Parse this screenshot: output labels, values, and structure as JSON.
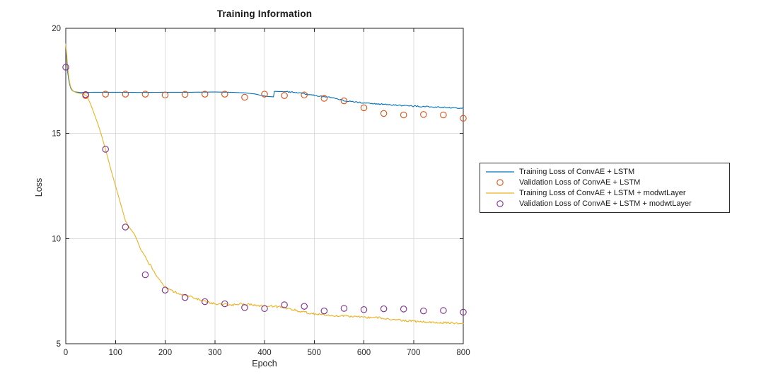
{
  "chart_data": {
    "type": "line",
    "title": "Training Information",
    "xlabel": "Epoch",
    "ylabel": "Loss",
    "xlim": [
      0,
      800
    ],
    "ylim": [
      5,
      20
    ],
    "x_ticks": [
      0,
      100,
      200,
      300,
      400,
      500,
      600,
      700,
      800
    ],
    "y_ticks": [
      5,
      10,
      15,
      20
    ],
    "grid": true,
    "box": true,
    "legend_position": "outside-right",
    "colors": {
      "axis": "#262626",
      "grid": "#dedede",
      "background": "#ffffff",
      "blue": "#0072BD",
      "orange": "#D95319",
      "yellow": "#EDB120",
      "purple": "#7E2F8E"
    },
    "series": [
      {
        "name": "Training Loss of ConvAE + LSTM",
        "type": "line",
        "color": "#0072BD",
        "noise": {
          "start": 430,
          "amplitude": 0.028
        },
        "points": [
          [
            0,
            19.3
          ],
          [
            2,
            18.5
          ],
          [
            4,
            17.9
          ],
          [
            6,
            17.55
          ],
          [
            8,
            17.32
          ],
          [
            10,
            17.15
          ],
          [
            13,
            17.05
          ],
          [
            16,
            17.0
          ],
          [
            20,
            16.97
          ],
          [
            30,
            16.95
          ],
          [
            60,
            16.96
          ],
          [
            100,
            16.96
          ],
          [
            150,
            16.95
          ],
          [
            200,
            16.96
          ],
          [
            250,
            16.96
          ],
          [
            300,
            16.97
          ],
          [
            330,
            16.96
          ],
          [
            360,
            16.93
          ],
          [
            380,
            16.88
          ],
          [
            395,
            16.8
          ],
          [
            405,
            16.76
          ],
          [
            418,
            16.74
          ],
          [
            420,
            17.0
          ],
          [
            450,
            16.98
          ],
          [
            470,
            16.93
          ],
          [
            490,
            16.85
          ],
          [
            510,
            16.78
          ],
          [
            530,
            16.72
          ],
          [
            545,
            16.65
          ],
          [
            560,
            16.56
          ],
          [
            580,
            16.5
          ],
          [
            600,
            16.45
          ],
          [
            630,
            16.4
          ],
          [
            660,
            16.35
          ],
          [
            690,
            16.31
          ],
          [
            720,
            16.28
          ],
          [
            750,
            16.25
          ],
          [
            780,
            16.22
          ],
          [
            800,
            16.18
          ]
        ]
      },
      {
        "name": "Validation Loss of ConvAE + LSTM",
        "type": "scatter",
        "color": "#D95319",
        "points": [
          [
            40,
            16.8
          ],
          [
            80,
            16.87
          ],
          [
            120,
            16.87
          ],
          [
            160,
            16.87
          ],
          [
            200,
            16.83
          ],
          [
            240,
            16.86
          ],
          [
            280,
            16.87
          ],
          [
            320,
            16.87
          ],
          [
            360,
            16.72
          ],
          [
            400,
            16.87
          ],
          [
            440,
            16.8
          ],
          [
            480,
            16.83
          ],
          [
            520,
            16.67
          ],
          [
            560,
            16.55
          ],
          [
            600,
            16.22
          ],
          [
            640,
            15.95
          ],
          [
            680,
            15.88
          ],
          [
            720,
            15.9
          ],
          [
            760,
            15.88
          ],
          [
            800,
            15.72
          ]
        ]
      },
      {
        "name": "Training Loss of ConvAE + LSTM + modwtLayer",
        "type": "line",
        "color": "#EDB120",
        "noise": {
          "start": 145,
          "amplitude": 0.05
        },
        "points": [
          [
            0,
            19.25
          ],
          [
            2,
            18.7
          ],
          [
            4,
            18.15
          ],
          [
            6,
            17.7
          ],
          [
            8,
            17.4
          ],
          [
            10,
            17.2
          ],
          [
            13,
            17.08
          ],
          [
            16,
            17.0
          ],
          [
            20,
            16.95
          ],
          [
            28,
            16.9
          ],
          [
            36,
            16.87
          ],
          [
            42,
            16.78
          ],
          [
            48,
            16.5
          ],
          [
            54,
            16.15
          ],
          [
            60,
            15.75
          ],
          [
            66,
            15.35
          ],
          [
            72,
            14.9
          ],
          [
            78,
            14.4
          ],
          [
            84,
            13.9
          ],
          [
            90,
            13.35
          ],
          [
            96,
            12.85
          ],
          [
            102,
            12.35
          ],
          [
            108,
            11.85
          ],
          [
            114,
            11.35
          ],
          [
            120,
            10.85
          ],
          [
            126,
            10.6
          ],
          [
            132,
            10.4
          ],
          [
            138,
            10.22
          ],
          [
            144,
            9.9
          ],
          [
            150,
            9.55
          ],
          [
            156,
            9.25
          ],
          [
            162,
            9.05
          ],
          [
            168,
            8.8
          ],
          [
            174,
            8.6
          ],
          [
            180,
            8.35
          ],
          [
            186,
            8.1
          ],
          [
            192,
            7.95
          ],
          [
            198,
            7.75
          ],
          [
            205,
            7.62
          ],
          [
            215,
            7.5
          ],
          [
            225,
            7.42
          ],
          [
            235,
            7.33
          ],
          [
            245,
            7.27
          ],
          [
            255,
            7.2
          ],
          [
            265,
            7.12
          ],
          [
            275,
            7.05
          ],
          [
            285,
            6.98
          ],
          [
            295,
            6.92
          ],
          [
            305,
            6.9
          ],
          [
            320,
            6.87
          ],
          [
            335,
            6.85
          ],
          [
            350,
            6.9
          ],
          [
            365,
            6.88
          ],
          [
            380,
            6.84
          ],
          [
            395,
            6.8
          ],
          [
            410,
            6.79
          ],
          [
            425,
            6.76
          ],
          [
            440,
            6.72
          ],
          [
            455,
            6.63
          ],
          [
            470,
            6.55
          ],
          [
            485,
            6.48
          ],
          [
            500,
            6.42
          ],
          [
            515,
            6.39
          ],
          [
            530,
            6.36
          ],
          [
            545,
            6.34
          ],
          [
            560,
            6.32
          ],
          [
            575,
            6.3
          ],
          [
            590,
            6.28
          ],
          [
            605,
            6.26
          ],
          [
            620,
            6.25
          ],
          [
            635,
            6.22
          ],
          [
            650,
            6.18
          ],
          [
            665,
            6.13
          ],
          [
            680,
            6.1
          ],
          [
            695,
            6.08
          ],
          [
            710,
            6.05
          ],
          [
            725,
            6.04
          ],
          [
            740,
            6.02
          ],
          [
            755,
            6.0
          ],
          [
            770,
            5.99
          ],
          [
            785,
            5.97
          ],
          [
            800,
            5.95
          ]
        ]
      },
      {
        "name": "Validation Loss of ConvAE + LSTM + modwtLayer",
        "type": "scatter",
        "color": "#7E2F8E",
        "points": [
          [
            0,
            18.15
          ],
          [
            40,
            16.85
          ],
          [
            80,
            14.25
          ],
          [
            120,
            10.55
          ],
          [
            160,
            8.28
          ],
          [
            200,
            7.55
          ],
          [
            240,
            7.2
          ],
          [
            280,
            7.0
          ],
          [
            320,
            6.9
          ],
          [
            360,
            6.72
          ],
          [
            400,
            6.67
          ],
          [
            440,
            6.85
          ],
          [
            480,
            6.78
          ],
          [
            520,
            6.56
          ],
          [
            560,
            6.68
          ],
          [
            600,
            6.62
          ],
          [
            640,
            6.66
          ],
          [
            680,
            6.65
          ],
          [
            720,
            6.56
          ],
          [
            760,
            6.58
          ],
          [
            800,
            6.5
          ]
        ]
      }
    ]
  }
}
